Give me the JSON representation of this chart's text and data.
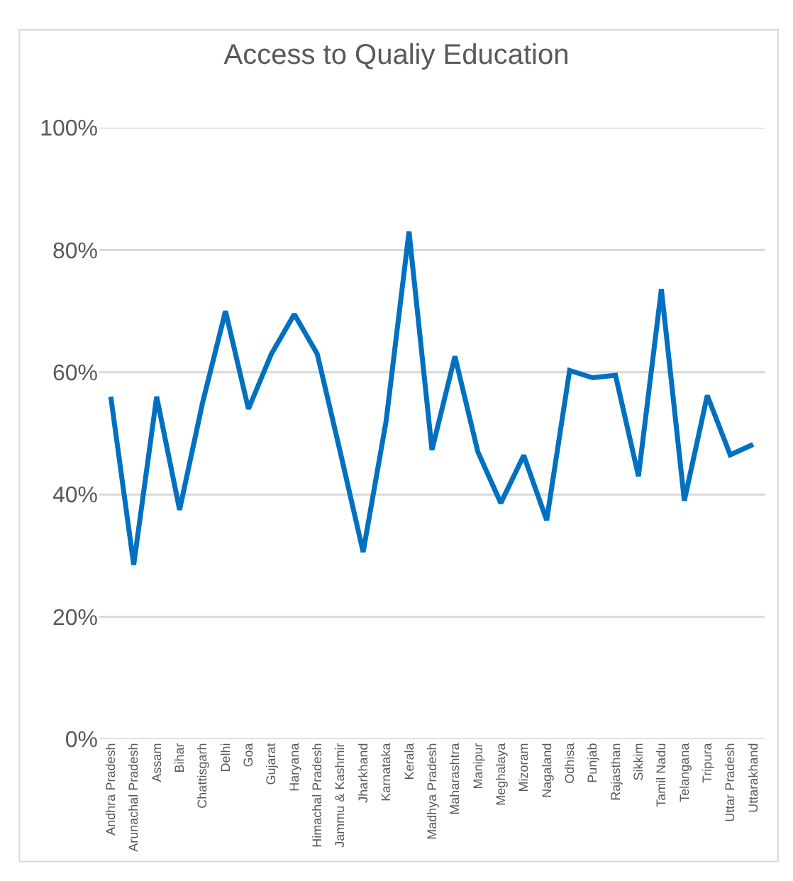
{
  "chart_data": {
    "type": "line",
    "title": "Access to Qualiy Education",
    "categories": [
      "Andhra Pradesh",
      "Arunachal Pradesh",
      "Assam",
      "Bihar",
      "Chattisgarh",
      "Delhi",
      "Goa",
      "Gujarat",
      "Haryana",
      "Himachal Pradesh",
      "Jammu & Kashmir",
      "Jharkhand",
      "Karnataka",
      "Kerala",
      "Madhya Pradesh",
      "Maharashtra",
      "Manipur",
      "Meghalaya",
      "Mizoram",
      "Nagaland",
      "Odhisa",
      "Punjab",
      "Rajasthan",
      "Sikkim",
      "Tamil Nadu",
      "Telangana",
      "Tripura",
      "Uttar Pradesh",
      "Uttarakhand"
    ],
    "series": [
      {
        "color": "#0070c0",
        "values": [
          56,
          28.5,
          56,
          37.5,
          55,
          70,
          54,
          63,
          69.5,
          63,
          47,
          30.6,
          52,
          83,
          47.3,
          62.6,
          47,
          38.6,
          46.4,
          35.8,
          60.3,
          59.1,
          59.5,
          43,
          73.6,
          39,
          56.2,
          46.5,
          48.2
        ]
      }
    ],
    "ylim": [
      0,
      100
    ],
    "yticks": [
      {
        "value": 0,
        "label": "0%"
      },
      {
        "value": 20,
        "label": "20%"
      },
      {
        "value": 40,
        "label": "40%"
      },
      {
        "value": 60,
        "label": "60%"
      },
      {
        "value": 80,
        "label": "80%"
      },
      {
        "value": 100,
        "label": "100%"
      }
    ],
    "grid": "y",
    "marker": "none",
    "line_style": "solid"
  }
}
